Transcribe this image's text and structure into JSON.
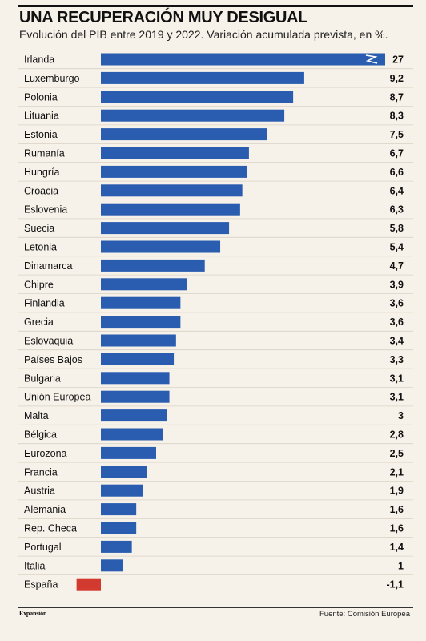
{
  "header": {
    "title": "UNA RECUPERACIÓN MUY DESIGUAL",
    "subtitle": "Evolución del PIB entre 2019 y 2022. Variación acumulada prevista, en %."
  },
  "footer": {
    "brand": "Expansión",
    "source": "Fuente: Comisión Europea"
  },
  "colors": {
    "positive_bar": "#2a5db0",
    "negative_bar": "#d23a2f",
    "background": "#f6f1e9"
  },
  "chart_data": {
    "type": "bar",
    "orientation": "horizontal",
    "title": "UNA RECUPERACIÓN MUY DESIGUAL",
    "subtitle": "Evolución del PIB entre 2019 y 2022. Variación acumulada prevista, en %.",
    "categories": [
      "Irlanda",
      "Luxemburgo",
      "Polonia",
      "Lituania",
      "Estonia",
      "Rumanía",
      "Hungría",
      "Croacia",
      "Eslovenia",
      "Suecia",
      "Letonia",
      "Dinamarca",
      "Chipre",
      "Finlandia",
      "Grecia",
      "Eslovaquia",
      "Países Bajos",
      "Bulgaria",
      "Unión Europea",
      "Malta",
      "Bélgica",
      "Eurozona",
      "Francia",
      "Austria",
      "Alemania",
      "Rep. Checa",
      "Portugal",
      "Italia",
      "España"
    ],
    "values": [
      27,
      9.2,
      8.7,
      8.3,
      7.5,
      6.7,
      6.6,
      6.4,
      6.3,
      5.8,
      5.4,
      4.7,
      3.9,
      3.6,
      3.6,
      3.4,
      3.3,
      3.1,
      3.1,
      3,
      2.8,
      2.5,
      2.1,
      1.9,
      1.6,
      1.6,
      1.4,
      1,
      -1.1
    ],
    "value_labels": [
      "27",
      "9,2",
      "8,7",
      "8,3",
      "7,5",
      "6,7",
      "6,6",
      "6,4",
      "6,3",
      "5,8",
      "5,4",
      "4,7",
      "3,9",
      "3,6",
      "3,6",
      "3,4",
      "3,3",
      "3,1",
      "3,1",
      "3",
      "2,8",
      "2,5",
      "2,1",
      "1,9",
      "1,6",
      "1,6",
      "1,4",
      "1",
      "-1,1"
    ],
    "axis_break": {
      "category": "Irlanda"
    },
    "grid": false,
    "legend": "none"
  }
}
